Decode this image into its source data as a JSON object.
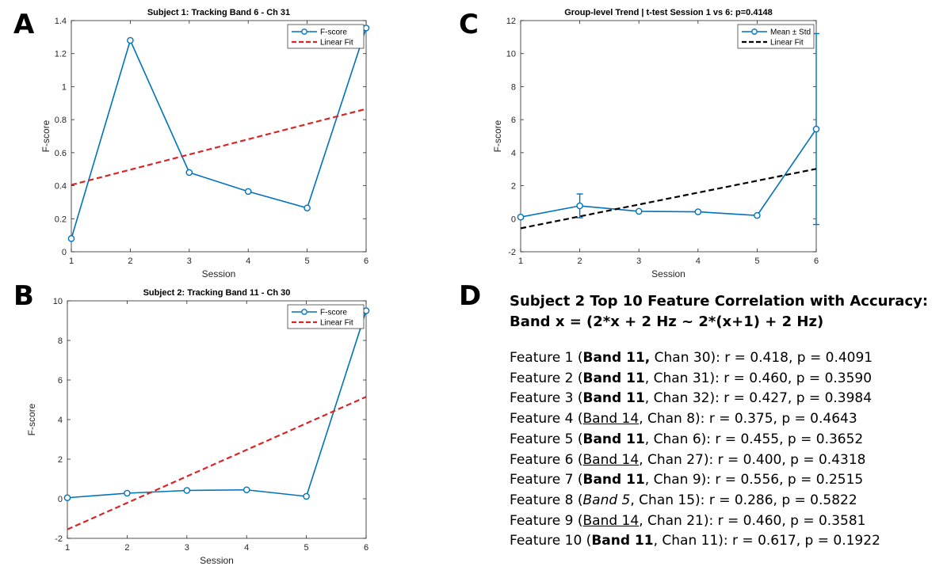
{
  "panel_letters": [
    "A",
    "B",
    "C",
    "D"
  ],
  "chart_data": [
    {
      "panel": "A",
      "type": "line",
      "title": "Subject 1: Tracking Band 6 - Ch 31",
      "xlabel": "Session",
      "ylabel": "F-score",
      "xlim": [
        1,
        6
      ],
      "ylim": [
        0,
        1.4
      ],
      "xticks": [
        1,
        2,
        3,
        4,
        5,
        6
      ],
      "yticks": [
        0,
        0.2,
        0.4,
        0.6,
        0.8,
        1,
        1.2,
        1.4
      ],
      "ytick_labels": [
        "0",
        "0.2",
        "0.4",
        "0.6",
        "0.8",
        "1",
        "1.2",
        "1.4"
      ],
      "grid": false,
      "legend_placement": "top-right",
      "series": [
        {
          "name": "F-score",
          "kind": "line-marker",
          "color": "#0072BD",
          "x": [
            1,
            2,
            3,
            4,
            5,
            6
          ],
          "y": [
            0.08,
            1.28,
            0.48,
            0.365,
            0.265,
            1.355
          ]
        },
        {
          "name": "Linear Fit",
          "kind": "dashed",
          "color": "#D62728",
          "x": [
            1,
            6
          ],
          "y": [
            0.405,
            0.865
          ]
        }
      ]
    },
    {
      "panel": "B",
      "type": "line",
      "title": "Subject 2: Tracking Band 11 - Ch 30",
      "xlabel": "Session",
      "ylabel": "F-score",
      "xlim": [
        1,
        6
      ],
      "ylim": [
        -2,
        10
      ],
      "xticks": [
        1,
        2,
        3,
        4,
        5,
        6
      ],
      "yticks": [
        -2,
        0,
        2,
        4,
        6,
        8,
        10
      ],
      "ytick_labels": [
        "-2",
        "0",
        "2",
        "4",
        "6",
        "8",
        "10"
      ],
      "grid": false,
      "legend_placement": "top-right",
      "series": [
        {
          "name": "F-score",
          "kind": "line-marker",
          "color": "#0072BD",
          "x": [
            1,
            2,
            3,
            4,
            5,
            6
          ],
          "y": [
            0.05,
            0.28,
            0.42,
            0.45,
            0.12,
            9.5
          ]
        },
        {
          "name": "Linear Fit",
          "kind": "dashed",
          "color": "#D62728",
          "x": [
            1,
            6
          ],
          "y": [
            -1.55,
            5.15
          ]
        }
      ]
    },
    {
      "panel": "C",
      "type": "line",
      "title": "Group-level Trend | t-test Session 1 vs 6: p=0.4148",
      "xlabel": "Session",
      "ylabel": "F-score",
      "xlim": [
        1,
        6
      ],
      "ylim": [
        -2,
        12
      ],
      "xticks": [
        1,
        2,
        3,
        4,
        5,
        6
      ],
      "yticks": [
        -2,
        0,
        2,
        4,
        6,
        8,
        10,
        12
      ],
      "ytick_labels": [
        "-2",
        "0",
        "2",
        "4",
        "6",
        "8",
        "10",
        "12"
      ],
      "grid": false,
      "legend_placement": "top-right",
      "series": [
        {
          "name": "Mean ± Std",
          "kind": "errorbar",
          "color": "#0072BD",
          "x": [
            1,
            2,
            3,
            4,
            5,
            6
          ],
          "y": [
            0.1,
            0.78,
            0.45,
            0.42,
            0.2,
            5.43
          ],
          "err": [
            0,
            0.72,
            0,
            0,
            0,
            5.78
          ]
        },
        {
          "name": "Linear Fit",
          "kind": "dashed",
          "color": "#000000",
          "x": [
            1,
            6
          ],
          "y": [
            -0.58,
            3.02
          ]
        }
      ]
    }
  ],
  "panel_d": {
    "heading_line1": "Subject 2 Top 10 Feature Correlation with Accuracy:",
    "heading_line2": "Band x = (2*x + 2 Hz ~ 2*(x+1) + 2 Hz)",
    "features": [
      {
        "prefix": "Feature 1 (",
        "band": "Band 11,",
        "style": "bold",
        "suffix": " Chan 30): r = 0.418, p = 0.4091"
      },
      {
        "prefix": "Feature 2 (",
        "band": "Band 11",
        "style": "bold",
        "suffix": ", Chan 31): r = 0.460, p = 0.3590"
      },
      {
        "prefix": "Feature 3 (",
        "band": "Band 11",
        "style": "bold",
        "suffix": ", Chan 32): r = 0.427, p = 0.3984"
      },
      {
        "prefix": "Feature 4 (",
        "band": "Band 14",
        "style": "underline",
        "suffix": ", Chan 8): r = 0.375, p = 0.4643"
      },
      {
        "prefix": "Feature 5 (",
        "band": "Band 11",
        "style": "bold",
        "suffix": ", Chan 6): r = 0.455, p = 0.3652"
      },
      {
        "prefix": "Feature 6 (",
        "band": "Band 14",
        "style": "underline",
        "suffix": ", Chan 27): r = 0.400, p = 0.4318"
      },
      {
        "prefix": "Feature 7 (",
        "band": "Band 11",
        "style": "bold",
        "suffix": ", Chan 9): r = 0.556, p = 0.2515"
      },
      {
        "prefix": "Feature 8 (",
        "band": "Band 5",
        "style": "italic",
        "suffix": ", Chan 15): r = 0.286, p = 0.5822"
      },
      {
        "prefix": "Feature 9 (",
        "band": "Band 14",
        "style": "underline",
        "suffix": ", Chan 21): r = 0.460, p = 0.3581"
      },
      {
        "prefix": "Feature 10 (",
        "band": "Band 11",
        "style": "bold",
        "suffix": ", Chan 11): r = 0.617, p = 0.1922"
      }
    ]
  }
}
